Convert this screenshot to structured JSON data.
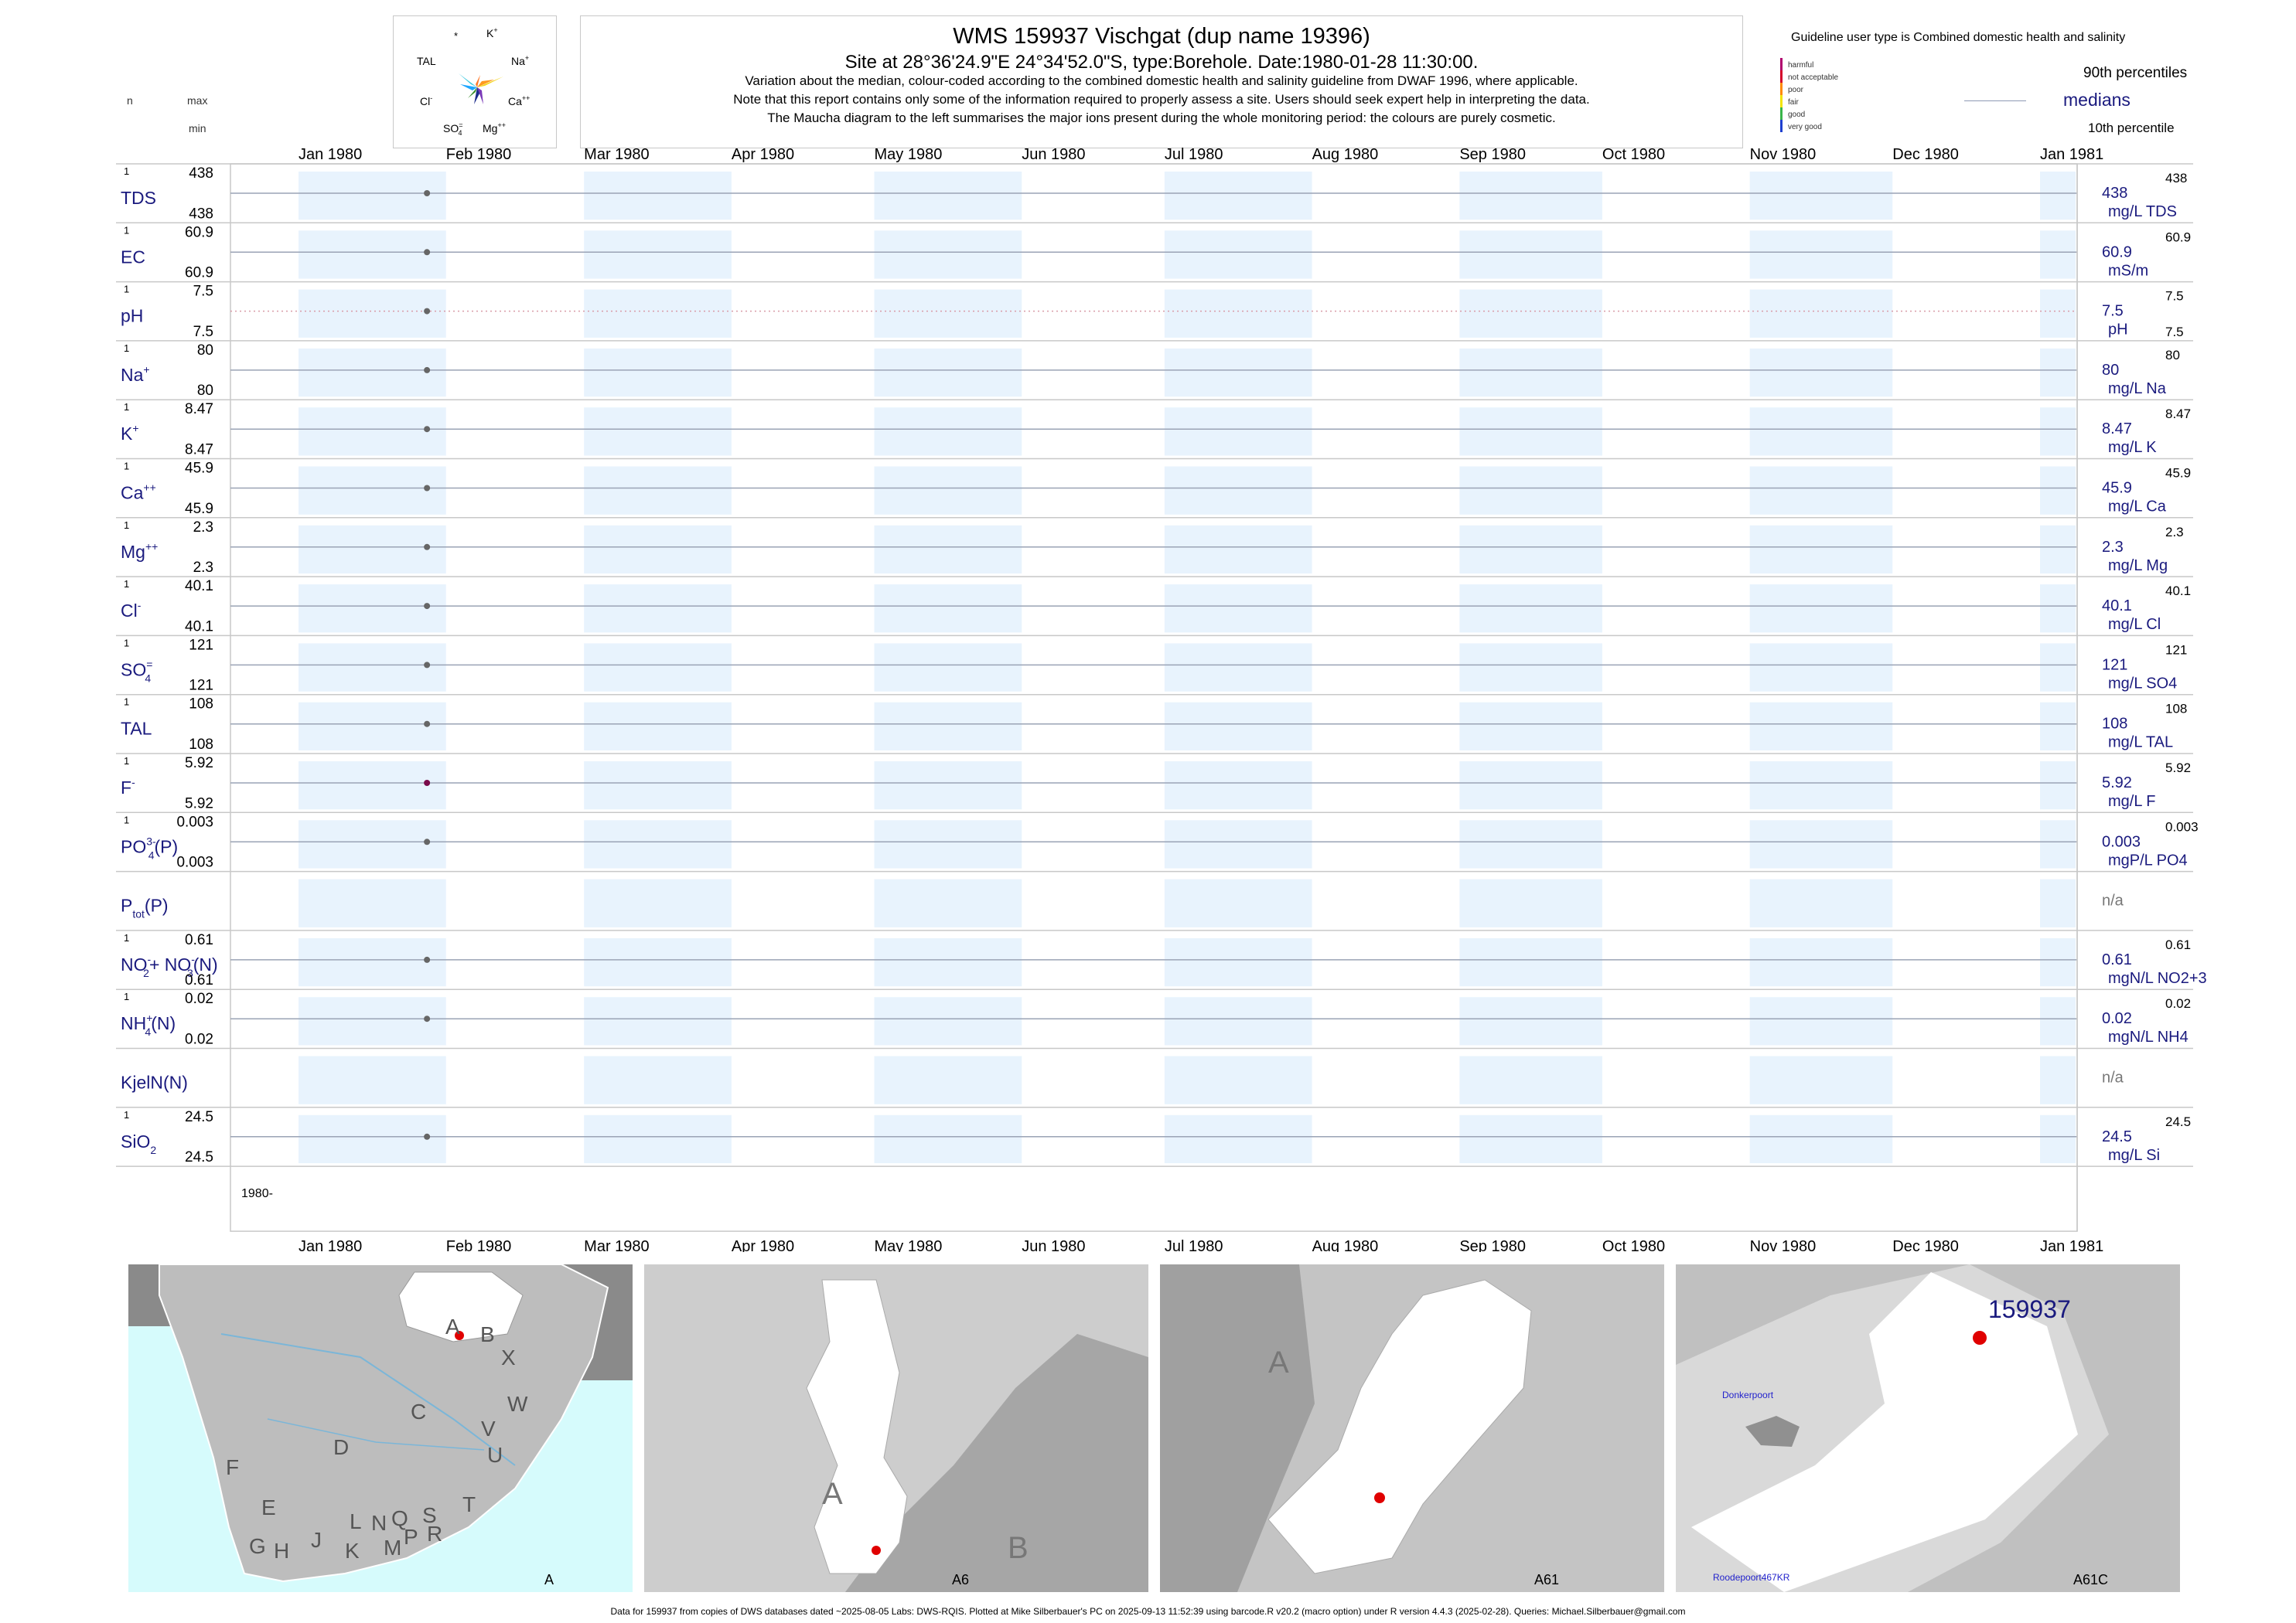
{
  "header": {
    "title": "WMS 159937  Vischgat (dup name 19396)",
    "site": "Site at 28°36'24.9\"E 24°34'52.0\"S, type:Borehole. Date:1980-01-28 11:30:00.",
    "note1": "Variation about the median,  colour-coded according to the combined domestic health and salinity guideline from DWAF 1996, where applicable.",
    "note2": "Note that this report contains only some of the information required to properly assess a site. Users should seek expert help in interpreting the data.",
    "note3": "The Maucha diagram to the left summarises the major ions present during the whole monitoring period: the colours are purely cosmetic."
  },
  "maucha": {
    "labels": [
      "*",
      "K+",
      "Na+",
      "Ca++",
      "Mg++",
      "SO4=",
      "Cl-",
      "TAL"
    ]
  },
  "left_header": {
    "n": "n",
    "max": "max",
    "min": "min"
  },
  "legend": {
    "guideline": "Guideline user type is Combined domestic health and salinity",
    "classes": [
      "harmful",
      "not acceptable",
      "poor",
      "fair",
      "good",
      "very good"
    ],
    "class_colors": [
      "#b0006e",
      "#d4002a",
      "#ff8a00",
      "#f2e400",
      "#39b54a",
      "#1e3fcf"
    ],
    "p90": "90th percentiles",
    "medians": "medians",
    "p10": "10th percentile"
  },
  "months_top": [
    "Jan 1980",
    "Feb 1980",
    "Mar 1980",
    "Apr 1980",
    "May 1980",
    "Jun 1980",
    "Jul 1980",
    "Aug 1980",
    "Sep 1980",
    "Oct 1980",
    "Nov 1980",
    "Dec 1980",
    "Jan 1981"
  ],
  "months_bottom": [
    "Jan 1980",
    "Feb 1980",
    "Mar 1980",
    "Apr 1980",
    "May 1980",
    "Jun 1980",
    "Jul 1980",
    "Aug 1980",
    "Sep 1980",
    "Oct 1980",
    "Nov 1980",
    "Dec 1980",
    "Jan 1981"
  ],
  "year_label": "1980-",
  "chart_data": {
    "type": "scatter",
    "x_range": [
      "1980-01-01",
      "1981-01-01"
    ],
    "sample_date": "1980-01-28",
    "rows": [
      {
        "name": "TDS",
        "sup": "",
        "sub": "",
        "n": "1",
        "max": "438",
        "min": "438",
        "median": "438",
        "p90": "438",
        "unit": "mg/L TDS",
        "point_color": "#666666"
      },
      {
        "name": "EC",
        "sup": "",
        "sub": "",
        "n": "1",
        "max": "60.9",
        "min": "60.9",
        "median": "60.9",
        "p90": "60.9",
        "unit": "mS/m",
        "point_color": "#666666"
      },
      {
        "name": "pH",
        "sup": "",
        "sub": "",
        "n": "1",
        "max": "7.5",
        "min": "7.5",
        "median": "7.5",
        "p90": "7.5",
        "p10": "7.5",
        "unit": "pH",
        "point_color": "#666666",
        "dotted": true
      },
      {
        "name": "Na",
        "sup": "+",
        "sub": "",
        "n": "1",
        "max": "80",
        "min": "80",
        "median": "80",
        "p90": "80",
        "unit": "mg/L Na",
        "point_color": "#666666"
      },
      {
        "name": "K",
        "sup": "+",
        "sub": "",
        "n": "1",
        "max": "8.47",
        "min": "8.47",
        "median": "8.47",
        "p90": "8.47",
        "unit": "mg/L K",
        "point_color": "#666666"
      },
      {
        "name": "Ca",
        "sup": "++",
        "sub": "",
        "n": "1",
        "max": "45.9",
        "min": "45.9",
        "median": "45.9",
        "p90": "45.9",
        "unit": "mg/L Ca",
        "point_color": "#666666"
      },
      {
        "name": "Mg",
        "sup": "++",
        "sub": "",
        "n": "1",
        "max": "2.3",
        "min": "2.3",
        "median": "2.3",
        "p90": "2.3",
        "unit": "mg/L Mg",
        "point_color": "#666666"
      },
      {
        "name": "Cl",
        "sup": "-",
        "sub": "",
        "n": "1",
        "max": "40.1",
        "min": "40.1",
        "median": "40.1",
        "p90": "40.1",
        "unit": "mg/L Cl",
        "point_color": "#666666"
      },
      {
        "name": "SO",
        "sup": "=",
        "sub": "4",
        "n": "1",
        "max": "121",
        "min": "121",
        "median": "121",
        "p90": "121",
        "unit": "mg/L SO4",
        "point_color": "#666666"
      },
      {
        "name": "TAL",
        "sup": "",
        "sub": "",
        "n": "1",
        "max": "108",
        "min": "108",
        "median": "108",
        "p90": "108",
        "unit": "mg/L TAL",
        "point_color": "#666666"
      },
      {
        "name": "F",
        "sup": "-",
        "sub": "",
        "n": "1",
        "max": "5.92",
        "min": "5.92",
        "median": "5.92",
        "p90": "5.92",
        "unit": "mg/L F",
        "point_color": "#7a0a4a"
      },
      {
        "name": "PO",
        "sup": "3-",
        "sub": "4",
        "tail": "(P)",
        "n": "1",
        "max": "0.003",
        "min": "0.003",
        "median": "0.003",
        "p90": "0.003",
        "unit": "mgP/L PO4",
        "point_color": "#666666"
      },
      {
        "name": "P",
        "sup": "",
        "sub": "tot",
        "tail": "(P)",
        "n": "",
        "max": "",
        "min": "",
        "median": "n/a",
        "p90": "",
        "unit": "",
        "point_color": ""
      },
      {
        "name": "NO",
        "sup": "-",
        "sub": "2",
        "tail": "+ NO",
        "sup2": "-",
        "sub2": "3",
        "tail2": "(N)",
        "n": "1",
        "max": "0.61",
        "min": "0.61",
        "median": "0.61",
        "p90": "0.61",
        "unit": "mgN/L NO2+3",
        "point_color": "#666666"
      },
      {
        "name": "NH",
        "sup": "+",
        "sub": "4",
        "tail": "(N)",
        "n": "1",
        "max": "0.02",
        "min": "0.02",
        "median": "0.02",
        "p90": "0.02",
        "unit": "mgN/L NH4",
        "point_color": "#666666"
      },
      {
        "name": "KjelN(N)",
        "sup": "",
        "sub": "",
        "n": "",
        "max": "",
        "min": "",
        "median": "n/a",
        "p90": "",
        "unit": "",
        "point_color": ""
      },
      {
        "name": "SiO",
        "sup": "",
        "sub": "2",
        "n": "1",
        "max": "24.5",
        "min": "24.5",
        "median": "24.5",
        "p90": "24.5",
        "unit": "mg/L Si",
        "point_color": "#666666"
      }
    ]
  },
  "maps": {
    "map1": {
      "caption": "A",
      "regions": [
        "A",
        "B",
        "X",
        "W",
        "C",
        "V",
        "U",
        "D",
        "F",
        "T",
        "E",
        "S",
        "G",
        "H",
        "J",
        "K",
        "L",
        "N",
        "Q",
        "M",
        "P",
        "R"
      ]
    },
    "map2": {
      "caption": "A6",
      "labels": [
        "A",
        "B"
      ]
    },
    "map3": {
      "caption": "A61",
      "labels": [
        "A"
      ]
    },
    "map4": {
      "caption": "A61C",
      "site": "159937",
      "place1": "Donkerpoort",
      "place2": "Roodepoort467KR"
    }
  },
  "footer": "Data for 159937 from copies of DWS databases dated ~2025-08-05 Labs: DWS-RQIS. Plotted at Mike Silberbauer's PC on 2025-09-13 11:52:39 using barcode.R v20.2 (macro option) under R version 4.4.3 (2025-02-28). Queries: Michael.Silberbauer@gmail.com"
}
